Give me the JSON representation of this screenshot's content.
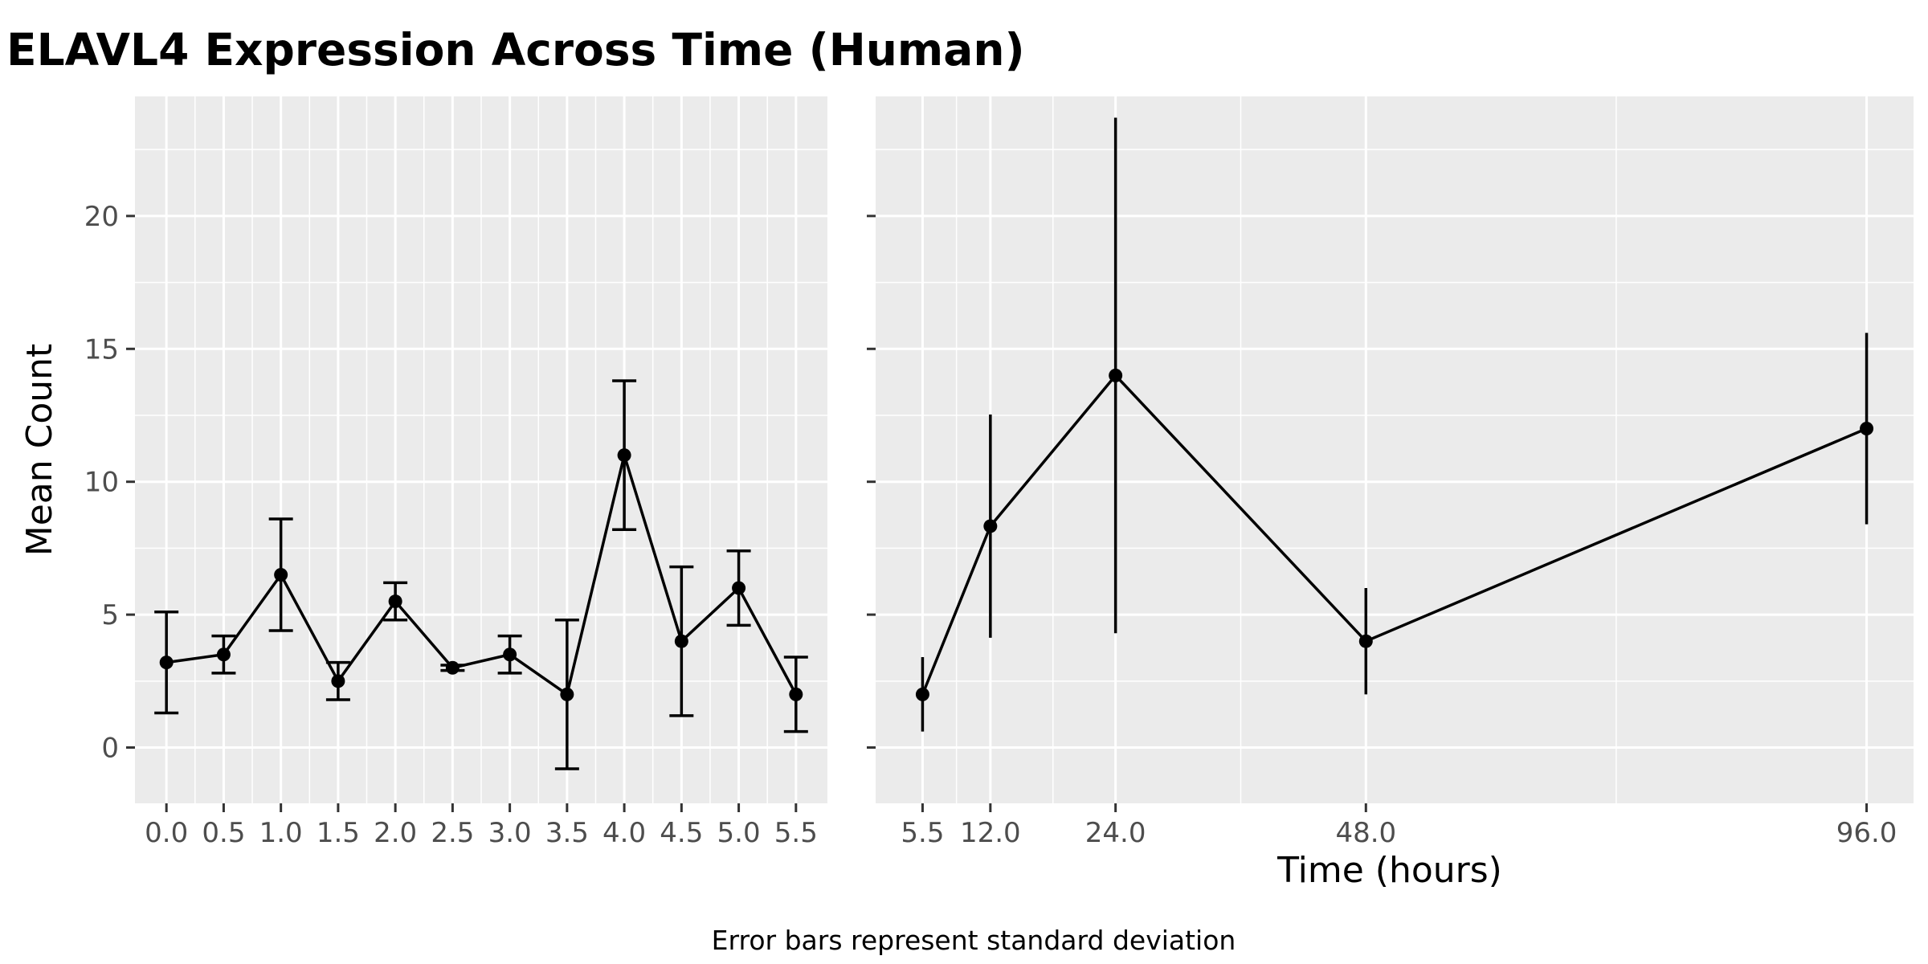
{
  "chart_data": {
    "type": "line",
    "title": "ELAVL4 Expression Across Time (Human)",
    "ylabel": "Mean Count",
    "xlabel": "Time (hours)",
    "caption": "Error bars represent standard deviation",
    "ylim": [
      -2.1,
      24.5
    ],
    "y_ticks": [
      0,
      5,
      10,
      15,
      20
    ],
    "grid": true,
    "panels": [
      {
        "name": "early",
        "x_scale": "linear",
        "xlim": [
          -0.275,
          5.775
        ],
        "x_ticks": [
          "0.0",
          "0.5",
          "1.0",
          "1.5",
          "2.0",
          "2.5",
          "3.0",
          "3.5",
          "4.0",
          "4.5",
          "5.0",
          "5.5"
        ],
        "error_bar_caps": true,
        "points": [
          {
            "x": 0.0,
            "y": 3.2,
            "sd": 1.9
          },
          {
            "x": 0.5,
            "y": 3.5,
            "sd": 0.7
          },
          {
            "x": 1.0,
            "y": 6.5,
            "sd": 2.1
          },
          {
            "x": 1.5,
            "y": 2.5,
            "sd": 0.7
          },
          {
            "x": 2.0,
            "y": 5.5,
            "sd": 0.7
          },
          {
            "x": 2.5,
            "y": 3.0,
            "sd": 0.1
          },
          {
            "x": 3.0,
            "y": 3.5,
            "sd": 0.7
          },
          {
            "x": 3.5,
            "y": 2.0,
            "sd": 2.8
          },
          {
            "x": 4.0,
            "y": 11.0,
            "sd": 2.8
          },
          {
            "x": 4.5,
            "y": 4.0,
            "sd": 2.8
          },
          {
            "x": 5.0,
            "y": 6.0,
            "sd": 1.4
          },
          {
            "x": 5.5,
            "y": 2.0,
            "sd": 1.4
          }
        ]
      },
      {
        "name": "late",
        "x_scale": "linear",
        "xlim": [
          1.0,
          100.5
        ],
        "x_ticks": [
          "5.5",
          "12.0",
          "24.0",
          "48.0",
          "96.0"
        ],
        "error_bar_caps": false,
        "points": [
          {
            "x": 5.5,
            "y": 2.0,
            "sd": 1.4
          },
          {
            "x": 12.0,
            "y": 8.33,
            "sd": 4.2
          },
          {
            "x": 24.0,
            "y": 14.0,
            "sd": 9.7
          },
          {
            "x": 48.0,
            "y": 4.0,
            "sd": 2.0
          },
          {
            "x": 96.0,
            "y": 12.0,
            "sd": 3.6
          }
        ]
      }
    ]
  }
}
